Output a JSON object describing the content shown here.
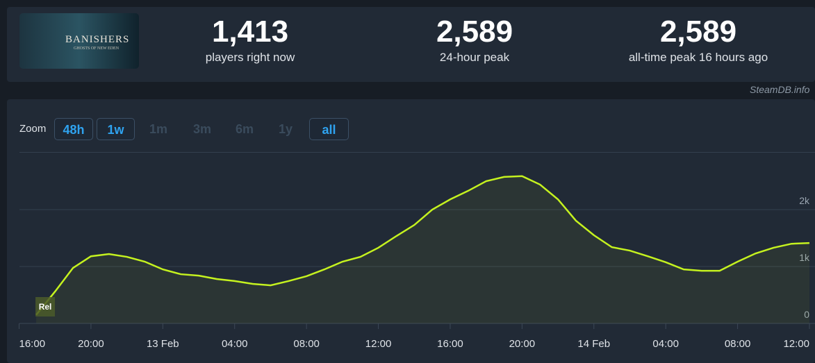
{
  "header": {
    "logo_title": "BANISHERS",
    "logo_subtitle": "GHOSTS OF NEW EDEN",
    "stats": [
      {
        "value": "1,413",
        "label": "players right now"
      },
      {
        "value": "2,589",
        "label": "24-hour peak"
      },
      {
        "value": "2,589",
        "label": "all-time peak 16 hours ago"
      }
    ]
  },
  "watermark": "SteamDB.info",
  "zoom": {
    "label": "Zoom",
    "options": [
      "48h",
      "1w",
      "1m",
      "3m",
      "6m",
      "1y",
      "all"
    ]
  },
  "chart_data": {
    "type": "line",
    "x": [
      0.95,
      2,
      3,
      4,
      5,
      6,
      7,
      8,
      9,
      10,
      11,
      12,
      13,
      14,
      15,
      16,
      17,
      18,
      19,
      20,
      21,
      22,
      23,
      24,
      25,
      26,
      27,
      28,
      29,
      30,
      31,
      32,
      33,
      34,
      35,
      36,
      37,
      38,
      39,
      40,
      41,
      42,
      43,
      44
    ],
    "series": [
      {
        "name": "Players",
        "color": "#c5f21f",
        "values": [
          150,
          560,
          975,
          1180,
          1220,
          1170,
          1085,
          950,
          865,
          840,
          780,
          745,
          695,
          670,
          745,
          830,
          950,
          1085,
          1170,
          1330,
          1535,
          1730,
          2000,
          2180,
          2330,
          2500,
          2575,
          2589,
          2440,
          2180,
          1805,
          1550,
          1340,
          1280,
          1180,
          1075,
          950,
          925,
          925,
          1085,
          1230,
          1330,
          1400,
          1413
        ]
      }
    ],
    "xlim": [
      0,
      44
    ],
    "xticks": [
      {
        "value": 0,
        "label": "16:00"
      },
      {
        "value": 4,
        "label": "20:00"
      },
      {
        "value": 8,
        "label": "13 Feb"
      },
      {
        "value": 12,
        "label": "04:00"
      },
      {
        "value": 16,
        "label": "08:00"
      },
      {
        "value": 20,
        "label": "12:00"
      },
      {
        "value": 24,
        "label": "16:00"
      },
      {
        "value": 28,
        "label": "20:00"
      },
      {
        "value": 32,
        "label": "14 Feb"
      },
      {
        "value": 36,
        "label": "04:00"
      },
      {
        "value": 40,
        "label": "08:00"
      },
      {
        "value": 44,
        "label": "12:00"
      }
    ],
    "ylim": [
      0,
      3000
    ],
    "yticks": [
      0,
      {
        "value": 1000,
        "label": "1k"
      },
      {
        "value": 2000,
        "label": "2k"
      }
    ],
    "grid": true,
    "annotations": [
      {
        "x": 0.95,
        "text": "Rel"
      }
    ]
  }
}
